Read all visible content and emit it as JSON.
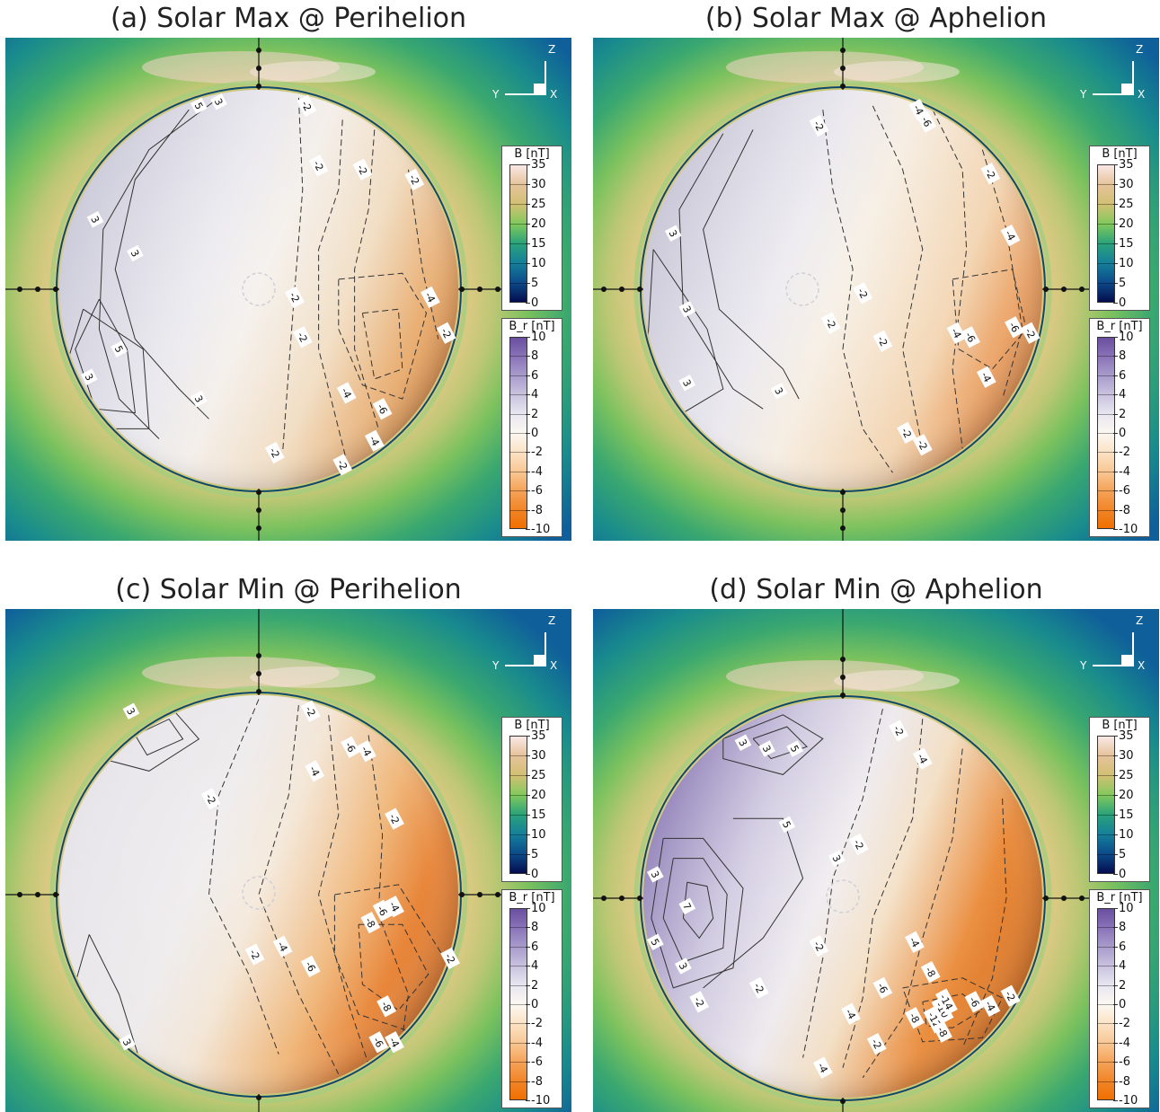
{
  "panels": [
    {
      "title": "(a) Solar Max @ Perihelion",
      "contour_labels": [
        "5",
        "3",
        "3",
        "3",
        "5",
        "3",
        "3",
        "2",
        "2",
        "2",
        "2",
        "2",
        "4",
        "2",
        "4",
        "6",
        "4",
        "2",
        "2",
        "3"
      ],
      "contour_labels_display": [
        "5",
        "3",
        "-2",
        "-2",
        "-2",
        "-2",
        "3",
        "3",
        "5",
        "3",
        "3",
        "-2",
        "-4",
        "-2",
        "-4",
        "-6",
        "-4",
        "-2",
        "-2",
        "-2"
      ]
    },
    {
      "title": "(b) Solar Max @ Aphelion",
      "contour_labels_display": [
        "-2",
        "-4",
        "-6",
        "-2",
        "-2",
        "-4",
        "3",
        "3",
        "3",
        "3",
        "-2",
        "-2",
        "-4",
        "-6",
        "-6",
        "-2",
        "-4",
        "-2",
        "-2"
      ]
    },
    {
      "title": "(c) Solar Min @ Perihelion",
      "contour_labels_display": [
        "3",
        "-2",
        "-6",
        "-4",
        "-4",
        "-2",
        "-2",
        "-8",
        "-6",
        "-4",
        "-4",
        "-2",
        "-6",
        "-2",
        "-8",
        "-6",
        "-4",
        "3"
      ]
    },
    {
      "title": "(d) Solar Min @ Aphelion",
      "contour_labels_display": [
        "-2",
        "-4",
        "3",
        "3",
        "5",
        "5",
        "3",
        "7",
        "3",
        "5",
        "3",
        "-2",
        "-2",
        "-2",
        "-4",
        "-8",
        "-6",
        "-4",
        "-8",
        "-10",
        "-12",
        "-14",
        "-6",
        "-4",
        "-2",
        "-2",
        "-4",
        "-8",
        "-2"
      ]
    }
  ],
  "axis_triad": {
    "z": "Z",
    "y": "Y",
    "x": "X"
  },
  "colorbar_B": {
    "title": "B [nT]",
    "ticks": [
      "35",
      "30",
      "25",
      "20",
      "15",
      "10",
      "5",
      "0"
    ],
    "colors": [
      "#fbe8e6",
      "#e5c39a",
      "#d2c073",
      "#82c95c",
      "#2ba37a",
      "#15809a",
      "#0c4b8a",
      "#050d4e"
    ]
  },
  "colorbar_Br": {
    "title": "B_r [nT]",
    "ticks": [
      "10",
      "8",
      "6",
      "4",
      "2",
      "0",
      "-2",
      "-4",
      "-6",
      "-8",
      "-10"
    ],
    "colors": [
      "#6a4fa0",
      "#8a74b8",
      "#a99ccc",
      "#c9c3df",
      "#e8e6f0",
      "#fbf8f2",
      "#fbe3c6",
      "#f9c895",
      "#f5a45a",
      "#f1862a",
      "#ef6f00"
    ]
  }
}
